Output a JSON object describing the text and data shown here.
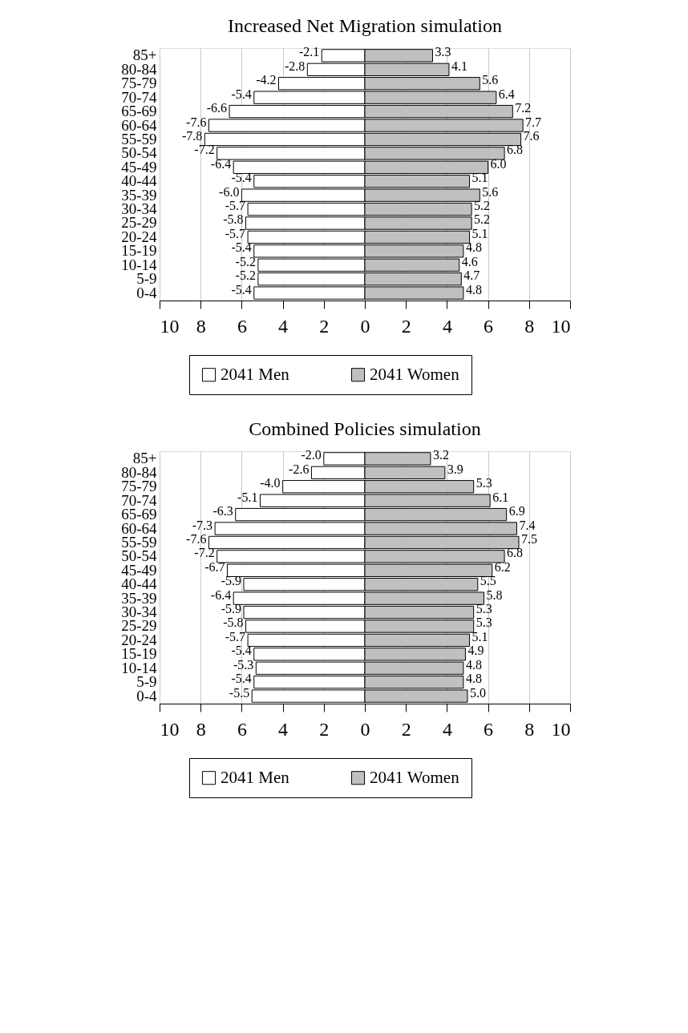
{
  "chart_data": [
    {
      "type": "bar",
      "title": "Increased Net Migration simulation",
      "orientation": "horizontal",
      "stacked": true,
      "grid": "x",
      "legend": "bottom",
      "categories": [
        "85+",
        "80-84",
        "75-79",
        "70-74",
        "65-69",
        "60-64",
        "55-59",
        "50-54",
        "45-49",
        "40-44",
        "35-39",
        "30-34",
        "25-29",
        "20-24",
        "15-19",
        "10-14",
        "5-9",
        "0-4"
      ],
      "series": [
        {
          "name": "2041 Men",
          "color": "#ffffff",
          "values": [
            -2.1,
            -2.8,
            -4.2,
            -5.4,
            -6.6,
            -7.6,
            -7.8,
            -7.2,
            -6.4,
            -5.4,
            -6.0,
            -5.7,
            -5.8,
            -5.7,
            -5.4,
            -5.2,
            -5.2,
            -5.4
          ],
          "value_labels": [
            "-2.1",
            "-2.8",
            "-4.2",
            "-5.4",
            "-6.6",
            "-7.6",
            "-7.8",
            "-7.2",
            "-6.4",
            "-5.4",
            "-6.0",
            "-5.7",
            "-5.8",
            "-5.7",
            "-5.4",
            "-5.2",
            "-5.2",
            "-5.4"
          ]
        },
        {
          "name": "2041 Women",
          "color": "#c0c0c0",
          "values": [
            3.3,
            4.1,
            5.6,
            6.4,
            7.2,
            7.7,
            7.6,
            6.8,
            6.0,
            5.1,
            5.6,
            5.2,
            5.2,
            5.1,
            4.8,
            4.6,
            4.7,
            4.8
          ],
          "value_labels": [
            "3.3",
            "4.1",
            "5.6",
            "6.4",
            "7.2",
            "7.7",
            "7.6",
            "6.8",
            "6.0",
            "5.1",
            "5.6",
            "5.2",
            "5.2",
            "5.1",
            "4.8",
            "4.6",
            "4.7",
            "4.8"
          ]
        }
      ],
      "xlim": [
        -10,
        10
      ],
      "xticks": [
        {
          "value": -10,
          "label": "10"
        },
        {
          "value": -8,
          "label": "8"
        },
        {
          "value": -6,
          "label": "6"
        },
        {
          "value": -4,
          "label": "4"
        },
        {
          "value": -2,
          "label": "2"
        },
        0,
        2,
        4,
        6,
        8,
        10
      ]
    },
    {
      "type": "bar",
      "title": "Combined Policies simulation",
      "orientation": "horizontal",
      "stacked": true,
      "grid": "x",
      "legend": "bottom",
      "categories": [
        "85+",
        "80-84",
        "75-79",
        "70-74",
        "65-69",
        "60-64",
        "55-59",
        "50-54",
        "45-49",
        "40-44",
        "35-39",
        "30-34",
        "25-29",
        "20-24",
        "15-19",
        "10-14",
        "5-9",
        "0-4"
      ],
      "series": [
        {
          "name": "2041 Men",
          "color": "#ffffff",
          "values": [
            -2.0,
            -2.6,
            -4.0,
            -5.1,
            -6.3,
            -7.3,
            -7.6,
            -7.2,
            -6.7,
            -5.9,
            -6.4,
            -5.9,
            -5.8,
            -5.7,
            -5.4,
            -5.3,
            -5.4,
            -5.5
          ],
          "value_labels": [
            "-2.0",
            "-2.6",
            "-4.0",
            "-5.1",
            "-6.3",
            "-7.3",
            "-7.6",
            "-7.2",
            "-6.7",
            "-5.9",
            "-6.4",
            "-5.9",
            "-5.8",
            "-5.7",
            "-5.4",
            "-5.3",
            "-5.4",
            "-5.5"
          ]
        },
        {
          "name": "2041 Women",
          "color": "#c0c0c0",
          "values": [
            3.2,
            3.9,
            5.3,
            6.1,
            6.9,
            7.4,
            7.5,
            6.8,
            6.2,
            5.5,
            5.8,
            5.3,
            5.3,
            5.1,
            4.9,
            4.8,
            4.8,
            5.0
          ],
          "value_labels": [
            "3.2",
            "3.9",
            "5.3",
            "6.1",
            "6.9",
            "7.4",
            "7.5",
            "6.8",
            "6.2",
            "5.5",
            "5.8",
            "5.3",
            "5.3",
            "5.1",
            "4.9",
            "4.8",
            "4.8",
            "5.0"
          ]
        }
      ],
      "xlim": [
        -10,
        10
      ],
      "xticks": [
        {
          "value": -10,
          "label": "10"
        },
        {
          "value": -8,
          "label": "8"
        },
        {
          "value": -6,
          "label": "6"
        },
        {
          "value": -4,
          "label": "4"
        },
        {
          "value": -2,
          "label": "2"
        },
        0,
        2,
        4,
        6,
        8,
        10
      ]
    }
  ]
}
